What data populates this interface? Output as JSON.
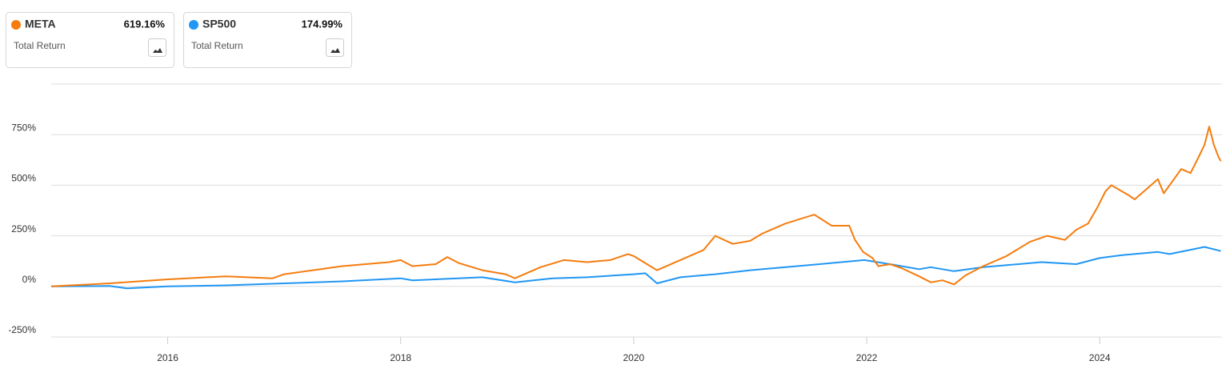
{
  "chart_data": {
    "type": "line",
    "xlim": [
      2015,
      2025.05
    ],
    "xticks": [
      2016,
      2018,
      2020,
      2022,
      2024
    ],
    "ylim": [
      -250,
      1000
    ],
    "yticks": [
      {
        "value": -250,
        "label": "-250%"
      },
      {
        "value": 0,
        "label": "0%"
      },
      {
        "value": 250,
        "label": "250%"
      },
      {
        "value": 500,
        "label": "500%"
      },
      {
        "value": 750,
        "label": "750%"
      }
    ],
    "grid": true,
    "series": [
      {
        "name": "META",
        "color": "#f57c0f",
        "end_label": "619.16%",
        "caption": "Total Return",
        "x": [
          2015.0,
          2015.5,
          2015.75,
          2016.0,
          2016.5,
          2016.9,
          2017.0,
          2017.5,
          2017.9,
          2018.0,
          2018.1,
          2018.3,
          2018.4,
          2018.5,
          2018.7,
          2018.9,
          2018.98,
          2019.2,
          2019.4,
          2019.6,
          2019.8,
          2019.95,
          2020.0,
          2020.2,
          2020.4,
          2020.6,
          2020.7,
          2020.85,
          2021.0,
          2021.1,
          2021.3,
          2021.55,
          2021.7,
          2021.85,
          2021.9,
          2021.97,
          2022.05,
          2022.1,
          2022.2,
          2022.3,
          2022.45,
          2022.55,
          2022.65,
          2022.75,
          2022.85,
          2023.0,
          2023.2,
          2023.4,
          2023.55,
          2023.7,
          2023.8,
          2023.9,
          2023.98,
          2024.05,
          2024.1,
          2024.25,
          2024.3,
          2024.4,
          2024.5,
          2024.55,
          2024.65,
          2024.7,
          2024.78,
          2024.85,
          2024.9,
          2024.94,
          2024.98,
          2025.02,
          2025.04
        ],
        "values": [
          0,
          15,
          25,
          35,
          50,
          40,
          60,
          100,
          120,
          130,
          100,
          110,
          145,
          115,
          80,
          60,
          40,
          95,
          130,
          120,
          130,
          160,
          150,
          80,
          130,
          180,
          250,
          210,
          225,
          260,
          310,
          355,
          300,
          300,
          230,
          170,
          140,
          100,
          110,
          90,
          50,
          20,
          30,
          10,
          55,
          100,
          150,
          220,
          250,
          230,
          280,
          310,
          390,
          470,
          500,
          450,
          430,
          480,
          530,
          460,
          540,
          580,
          560,
          640,
          700,
          790,
          700,
          640,
          619.16
        ]
      },
      {
        "name": "SP500",
        "color": "#2196f3",
        "end_label": "174.99%",
        "caption": "Total Return",
        "x": [
          2015.0,
          2015.5,
          2015.65,
          2016.0,
          2016.5,
          2017.0,
          2017.5,
          2018.0,
          2018.1,
          2018.7,
          2018.98,
          2019.3,
          2019.6,
          2020.0,
          2020.1,
          2020.2,
          2020.4,
          2020.7,
          2021.0,
          2021.5,
          2021.98,
          2022.2,
          2022.45,
          2022.55,
          2022.75,
          2023.0,
          2023.5,
          2023.8,
          2024.0,
          2024.2,
          2024.5,
          2024.6,
          2024.9,
          2025.04
        ],
        "values": [
          0,
          2,
          -10,
          0,
          5,
          15,
          25,
          40,
          30,
          45,
          20,
          40,
          45,
          60,
          65,
          15,
          45,
          60,
          80,
          105,
          130,
          110,
          85,
          95,
          75,
          95,
          120,
          110,
          140,
          155,
          170,
          160,
          195,
          174.99
        ]
      }
    ]
  }
}
